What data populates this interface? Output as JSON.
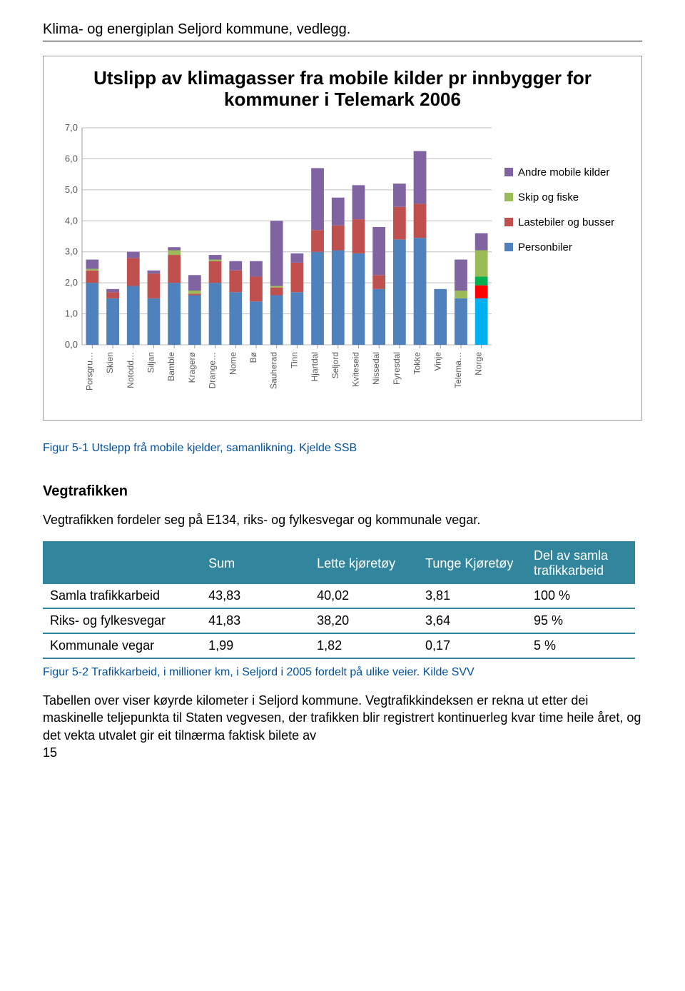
{
  "header": {
    "title": "Klima- og energiplan Seljord kommune, vedlegg."
  },
  "chart": {
    "type": "stacked-bar",
    "title": "Utslipp av klimagasser fra mobile kilder pr innbygger for kommuner i Telemark 2006",
    "ylim": [
      0,
      7
    ],
    "ytick_step": 1,
    "ylabels": [
      "0,0",
      "1,0",
      "2,0",
      "3,0",
      "4,0",
      "5,0",
      "6,0",
      "7,0"
    ],
    "gridline_color": "#bfbfbf",
    "plot_bg": "#ffffff",
    "legend": [
      {
        "label": "Andre mobile kilder",
        "color": "#8064a2"
      },
      {
        "label": "Skip og fiske",
        "color": "#9bbb59"
      },
      {
        "label": "Lastebiler og busser",
        "color": "#c0504d"
      },
      {
        "label": "Personbiler",
        "color": "#4f81bd"
      }
    ],
    "categories": [
      "Porsgru…",
      "Skien",
      "Notodd…",
      "Siljan",
      "Bamble",
      "Kragerø",
      "Drange…",
      "Nome",
      "Bø",
      "Sauherad",
      "Tinn",
      "Hjartdal",
      "Seljord",
      "Kviteseid",
      "Nissedal",
      "Fyresdal",
      "Tokke",
      "Vinje",
      "Telema…",
      "Norge"
    ],
    "series": {
      "personbiler": [
        2.0,
        1.5,
        1.9,
        1.5,
        2.0,
        1.6,
        2.0,
        1.7,
        1.4,
        1.6,
        1.7,
        3.0,
        3.05,
        2.95,
        1.8,
        3.4,
        3.45,
        1.8,
        1.5,
        1.5
      ],
      "lastebiler": [
        0.4,
        0.2,
        0.9,
        0.8,
        0.9,
        0.05,
        0.7,
        0.7,
        0.8,
        0.25,
        0.95,
        0.7,
        0.8,
        1.1,
        0.45,
        1.05,
        1.1,
        0.0,
        0.0,
        0.5
      ],
      "skip": [
        0.05,
        0.0,
        0.0,
        0.0,
        0.15,
        0.1,
        0.05,
        0.0,
        0.0,
        0.05,
        0.0,
        0.0,
        0.0,
        0.0,
        0.0,
        0.0,
        0.0,
        0.0,
        0.25,
        0.1
      ],
      "andre": [
        0.3,
        0.1,
        0.2,
        0.1,
        0.1,
        0.5,
        0.15,
        0.3,
        0.5,
        2.1,
        0.3,
        2.0,
        0.9,
        1.1,
        1.55,
        0.75,
        1.7,
        0.0,
        1.0,
        1.5
      ],
      "norge_extra": [
        0.0,
        0.0,
        0.0,
        0.0,
        0.0,
        0.0,
        0.0,
        0.0,
        0.0,
        0.0,
        0.0,
        0.0,
        0.0,
        0.0,
        0.0,
        0.0,
        0.0,
        0.0,
        0.0,
        0.0
      ],
      "norge_stack": [
        1.5,
        0.42,
        0.28,
        0.85,
        0.55
      ]
    },
    "norge_colors": [
      "#00b0f0",
      "#ff0000",
      "#00b050",
      "#9bbb59",
      "#8064a2"
    ]
  },
  "caption1": "Figur 5-1  Utslepp frå mobile kjelder, samanlikning. Kjelde SSB",
  "section": {
    "heading": "Vegtrafikken",
    "intro": "Vegtrafikken fordeler seg på E134, riks- og fylkesvegar og kommunale vegar."
  },
  "table": {
    "columns": [
      "",
      "Sum",
      "Lette kjøretøy",
      "Tunge Kjøretøy",
      "Del av samla trafikkarbeid"
    ],
    "rows": [
      [
        "Samla trafikkarbeid",
        "43,83",
        "40,02",
        "3,81",
        "100 %"
      ],
      [
        "Riks- og fylkesvegar",
        "41,83",
        "38,20",
        "3,64",
        "95 %"
      ],
      [
        "Kommunale vegar",
        "1,99",
        "1,82",
        "0,17",
        "5 %"
      ]
    ]
  },
  "caption2": "Figur 5-2 Trafikkarbeid, i millioner km, i Seljord i 2005 fordelt på ulike veier. Kilde SVV",
  "para2": "Tabellen over viser køyrde kilometer i Seljord kommune. Vegtrafikkindeksen er rekna ut etter dei maskinelle teljepunkta til Staten vegvesen, der trafikken blir registrert kontinuerleg kvar time heile året, og det vekta utvalet gir eit tilnærma faktisk bilete av",
  "pagenum": "15"
}
